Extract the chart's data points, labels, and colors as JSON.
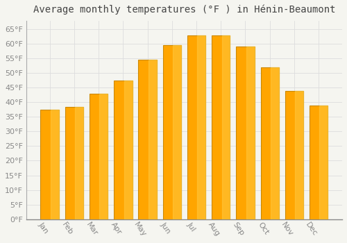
{
  "title": "Average monthly temperatures (°F ) in Hénin-Beaumont",
  "months": [
    "Jan",
    "Feb",
    "Mar",
    "Apr",
    "May",
    "Jun",
    "Jul",
    "Aug",
    "Sep",
    "Oct",
    "Nov",
    "Dec"
  ],
  "values": [
    37.5,
    38.5,
    43.0,
    47.5,
    54.5,
    59.5,
    63.0,
    63.0,
    59.0,
    52.0,
    44.0,
    39.0
  ],
  "bar_color": "#FFA500",
  "bar_edge_color": "#CC8800",
  "background_color": "#F5F5F0",
  "plot_bg_color": "#F5F5F0",
  "grid_color": "#DDDDDD",
  "ylim": [
    0,
    68
  ],
  "yticks": [
    0,
    5,
    10,
    15,
    20,
    25,
    30,
    35,
    40,
    45,
    50,
    55,
    60,
    65
  ],
  "title_fontsize": 10,
  "tick_fontsize": 8,
  "tick_color": "#888888",
  "title_color": "#444444",
  "bar_width": 0.75,
  "xlabel_rotation": -55
}
